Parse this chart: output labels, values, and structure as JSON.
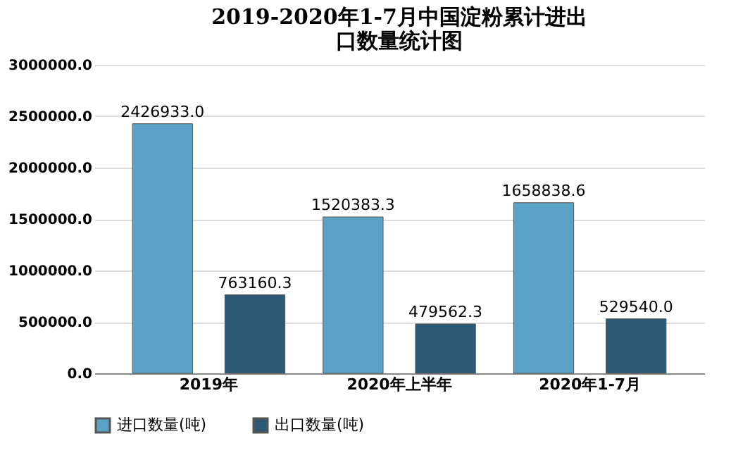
{
  "chart_data": {
    "type": "bar",
    "title": "2019-2020年1-7月中国淀粉累计进出口数量统计图",
    "categories": [
      "2019年",
      "2020年上半年",
      "2020年1-7月"
    ],
    "series": [
      {
        "name": "进口数量(吨)",
        "color": "#5ba3c6",
        "values": [
          2426933.0,
          1520383.3,
          1658838.6
        ]
      },
      {
        "name": "出口数量(吨)",
        "color": "#2c5a74",
        "values": [
          763160.3,
          479562.3,
          529540.0
        ]
      }
    ],
    "value_labels": [
      [
        "2426933.0",
        "1520383.3",
        "1658838.6"
      ],
      [
        "763160.3",
        "479562.3",
        "529540.0"
      ]
    ],
    "ylim": [
      0,
      3000000
    ],
    "yticks": [
      {
        "value": 0,
        "label": "0.0"
      },
      {
        "value": 500000,
        "label": "500000.0"
      },
      {
        "value": 1000000,
        "label": "1000000.0"
      },
      {
        "value": 1500000,
        "label": "1500000.0"
      },
      {
        "value": 2000000,
        "label": "2000000.0"
      },
      {
        "value": 2500000,
        "label": "2500000.0"
      },
      {
        "value": 3000000,
        "label": "3000000.0"
      }
    ],
    "grid": "y",
    "legend": "bottom"
  }
}
